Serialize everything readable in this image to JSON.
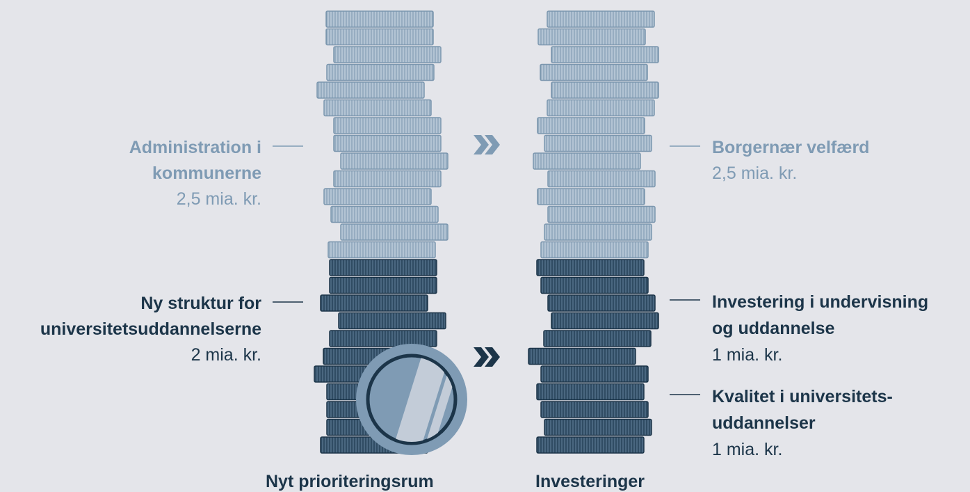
{
  "left": [
    {
      "lines": [
        "Administration i",
        "kommunerne"
      ],
      "amount": "2,5 mia. kr."
    },
    {
      "lines": [
        "Ny struktur for",
        "universitetsuddannelserne"
      ],
      "amount": "2 mia. kr."
    }
  ],
  "right": [
    {
      "lines": [
        "Borgernær velfærd"
      ],
      "amount": "2,5 mia. kr."
    },
    {
      "lines": [
        "Investering i undervisning",
        "og uddannelse"
      ],
      "amount": "1 mia. kr."
    },
    {
      "lines": [
        "Kvalitet i universitets-",
        "uddannelser"
      ],
      "amount": "1 mia. kr."
    }
  ],
  "stack_titles": [
    "Nyt prioriteringsrum",
    "Investeringer"
  ]
}
